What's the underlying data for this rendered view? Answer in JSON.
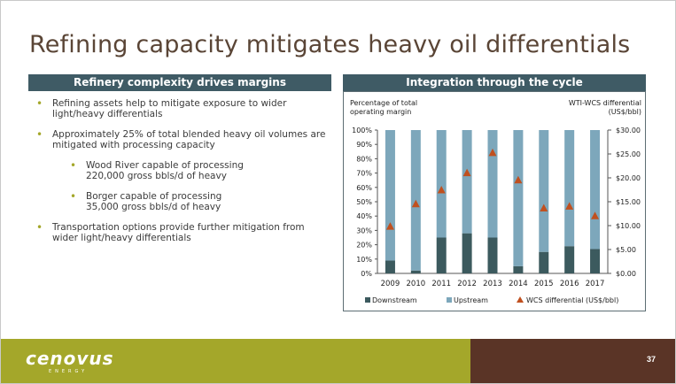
{
  "slide": {
    "title": "Refining capacity mitigates heavy oil differentials",
    "left_band": "Refinery complexity drives margins",
    "right_band": "Integration through the cycle",
    "bullets": [
      {
        "text1": "Refining assets help to mitigate exposure to wider",
        "text2": "light/heavy differentials"
      },
      {
        "text1": "Approximately 25% of total blended heavy oil volumes are",
        "text2": "mitigated with processing capacity"
      },
      {
        "text1": "Wood River capable of processing",
        "text2": "220,000 gross bbls/d of heavy"
      },
      {
        "text1": "Borger capable of processing",
        "text2": "35,000 gross bbls/d of heavy"
      },
      {
        "text1": "Transportation options provide further mitigation from",
        "text2": "wider light/heavy differentials"
      }
    ],
    "page_number": "37",
    "logo_text": "cenovus",
    "logo_sub": "ENERGY"
  },
  "colors": {
    "title": "#5a4536",
    "band": "#3f5b65",
    "bullet": "#a4a72a",
    "downstream": "#3c5a5e",
    "upstream": "#7da7bb",
    "wcs_marker": "#c0501f",
    "footer_green": "#a4a72a",
    "footer_brown": "#5a3426"
  },
  "chart_data": {
    "type": "bar",
    "stacked": true,
    "left_axis_title_1": "Percentage of total",
    "left_axis_title_2": "operating margin",
    "right_axis_title_1": "WTI-WCS differential",
    "right_axis_title_2": "(US$/bbl)",
    "categories": [
      "2009",
      "2010",
      "2011",
      "2012",
      "2013",
      "2014",
      "2015",
      "2016",
      "2017"
    ],
    "series": [
      {
        "name": "Downstream",
        "values": [
          9,
          2,
          25,
          28,
          25,
          5,
          15,
          19,
          17
        ]
      },
      {
        "name": "Upstream",
        "values": [
          91,
          98,
          75,
          72,
          75,
          95,
          85,
          81,
          83
        ]
      }
    ],
    "line_series": {
      "name": "WCS differential (US$/bbl)",
      "axis": "right",
      "values": [
        9.8,
        14.5,
        17.4,
        21.0,
        25.2,
        19.5,
        13.6,
        14.0,
        12.0
      ]
    },
    "left_ticks": [
      "0%",
      "10%",
      "20%",
      "30%",
      "40%",
      "50%",
      "60%",
      "70%",
      "80%",
      "90%",
      "100%"
    ],
    "right_ticks": [
      "$0.00",
      "$5.00",
      "$10.00",
      "$15.00",
      "$20.00",
      "$25.00",
      "$30.00"
    ],
    "ylim_left": [
      0,
      100
    ],
    "ylim_right": [
      0,
      30
    ],
    "legend_position": "bottom"
  }
}
